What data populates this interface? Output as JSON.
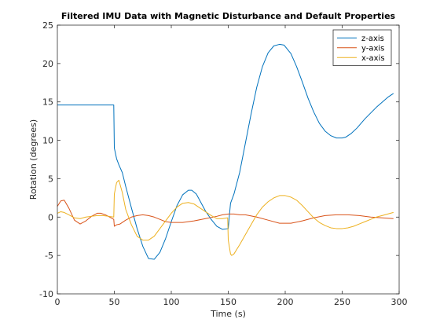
{
  "chart_data": {
    "type": "line",
    "title": "Filtered IMU Data with Magnetic Disturbance and Default Properties",
    "xlabel": "Time (s)",
    "ylabel": "Rotation (degrees)",
    "xlim": [
      0,
      300
    ],
    "ylim": [
      -10,
      25
    ],
    "xticks": [
      0,
      50,
      100,
      150,
      200,
      250,
      300
    ],
    "yticks": [
      -10,
      -5,
      0,
      5,
      10,
      15,
      20,
      25
    ],
    "grid": false,
    "legend_position": "top-right",
    "series": [
      {
        "name": "z-axis",
        "color": "#0072BD",
        "x": [
          0,
          10,
          20,
          30,
          40,
          49.5,
          50,
          52,
          54,
          57,
          60,
          65,
          70,
          75,
          80,
          85,
          90,
          95,
          100,
          105,
          110,
          115,
          118,
          122,
          126,
          130,
          135,
          140,
          145,
          150,
          151,
          152,
          155,
          160,
          165,
          170,
          175,
          180,
          185,
          190,
          195,
          199,
          205,
          210,
          215,
          220,
          225,
          230,
          235,
          240,
          245,
          250,
          253,
          258,
          263,
          270,
          280,
          290,
          295
        ],
        "y": [
          14.6,
          14.6,
          14.6,
          14.6,
          14.6,
          14.6,
          9.0,
          7.6,
          6.8,
          5.8,
          4.0,
          1.2,
          -1.5,
          -3.8,
          -5.4,
          -5.5,
          -4.6,
          -2.8,
          -0.6,
          1.5,
          2.9,
          3.5,
          3.5,
          3.0,
          1.9,
          0.8,
          -0.3,
          -1.2,
          -1.6,
          -1.5,
          0.2,
          1.8,
          3.0,
          5.8,
          9.6,
          13.4,
          16.9,
          19.6,
          21.4,
          22.3,
          22.5,
          22.4,
          21.3,
          19.6,
          17.6,
          15.5,
          13.7,
          12.2,
          11.2,
          10.6,
          10.3,
          10.3,
          10.4,
          10.9,
          11.6,
          12.8,
          14.3,
          15.6,
          16.1
        ]
      },
      {
        "name": "y-axis",
        "color": "#D95319",
        "x": [
          0,
          3,
          6,
          10,
          15,
          20,
          25,
          30,
          35,
          38,
          42,
          46,
          49.5,
          50,
          52,
          55,
          60,
          65,
          70,
          75,
          80,
          85,
          90,
          95,
          100,
          110,
          120,
          130,
          140,
          145,
          150,
          155,
          160,
          165,
          175,
          185,
          195,
          205,
          215,
          225,
          235,
          245,
          255,
          265,
          275,
          285,
          295
        ],
        "y": [
          1.4,
          2.1,
          2.2,
          1.2,
          -0.4,
          -0.9,
          -0.5,
          0.1,
          0.5,
          0.5,
          0.3,
          0.0,
          -0.3,
          -1.2,
          -1.0,
          -0.9,
          -0.4,
          0.0,
          0.2,
          0.3,
          0.2,
          0.0,
          -0.3,
          -0.6,
          -0.7,
          -0.7,
          -0.5,
          -0.2,
          0.1,
          0.3,
          0.4,
          0.4,
          0.3,
          0.3,
          0.0,
          -0.4,
          -0.8,
          -0.8,
          -0.5,
          -0.1,
          0.2,
          0.3,
          0.3,
          0.2,
          0.0,
          -0.1,
          -0.2
        ]
      },
      {
        "name": "x-axis",
        "color": "#EDB120",
        "x": [
          0,
          3,
          6,
          10,
          15,
          20,
          25,
          30,
          35,
          40,
          45,
          49.5,
          50,
          52,
          54,
          57,
          60,
          65,
          70,
          75,
          80,
          85,
          90,
          95,
          100,
          105,
          110,
          115,
          120,
          125,
          130,
          135,
          140,
          145,
          149.5,
          150,
          152,
          153,
          155,
          160,
          165,
          170,
          175,
          180,
          185,
          190,
          195,
          200,
          205,
          210,
          215,
          220,
          225,
          230,
          235,
          240,
          245,
          250,
          255,
          260,
          265,
          270,
          275,
          280,
          285,
          290,
          295
        ],
        "y": [
          0.5,
          0.7,
          0.6,
          0.3,
          -0.1,
          -0.2,
          0.0,
          0.1,
          0.2,
          0.2,
          0.1,
          0.0,
          3.0,
          4.5,
          4.8,
          3.2,
          1.0,
          -1.0,
          -2.5,
          -3.0,
          -3.0,
          -2.5,
          -1.5,
          -0.5,
          0.5,
          1.3,
          1.8,
          1.9,
          1.7,
          1.2,
          0.7,
          0.2,
          -0.2,
          -0.2,
          -0.1,
          -3.0,
          -4.8,
          -5.0,
          -4.8,
          -3.6,
          -2.3,
          -1.0,
          0.3,
          1.3,
          2.0,
          2.5,
          2.8,
          2.8,
          2.6,
          2.2,
          1.5,
          0.7,
          -0.1,
          -0.7,
          -1.1,
          -1.4,
          -1.5,
          -1.5,
          -1.4,
          -1.2,
          -0.9,
          -0.6,
          -0.3,
          0.0,
          0.2,
          0.4,
          0.6
        ]
      }
    ]
  }
}
